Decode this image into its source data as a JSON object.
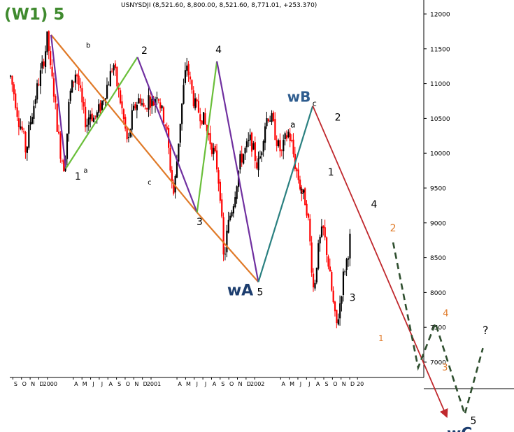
{
  "header": {
    "wave_title": "(W1) 5",
    "quote": "USNYSDJI (8,521.60, 8,800.00, 8,521.60, 8,771.01, +253.370)"
  },
  "chart_data": {
    "type": "candlestick",
    "symbol": "USNYSDJI",
    "title": "USNYSDJI (8,521.60, 8,800.00, 8,521.60, 8,771.01, +253.370)",
    "last_bar": {
      "open": 8521.6,
      "high": 8800.0,
      "low": 8521.6,
      "close": 8771.01,
      "change": "+253.370"
    },
    "x_range": [
      "1999-09",
      "2003-01"
    ],
    "ylim": [
      6500,
      12300
    ],
    "grid": false,
    "y_ticks": [
      7000,
      7500,
      8000,
      8500,
      9000,
      9500,
      10000,
      10500,
      11000,
      11500,
      12000
    ],
    "y_tick_labels": [
      "7000",
      "7500",
      "8000",
      "8500",
      "9000",
      "9500",
      "10000",
      "10500",
      "11000",
      "11500",
      "12000"
    ],
    "x_tick_labels": [
      {
        "label": "S",
        "t": 0.6
      },
      {
        "label": "O",
        "t": 1.6
      },
      {
        "label": "N",
        "t": 2.6
      },
      {
        "label": "D",
        "t": 3.6
      },
      {
        "label": "2000",
        "t": 4.6
      },
      {
        "label": "A",
        "t": 7.6
      },
      {
        "label": "M",
        "t": 8.6
      },
      {
        "label": "J",
        "t": 9.6
      },
      {
        "label": "J",
        "t": 10.6
      },
      {
        "label": "A",
        "t": 11.6
      },
      {
        "label": "S",
        "t": 12.6
      },
      {
        "label": "O",
        "t": 13.6
      },
      {
        "label": "N",
        "t": 14.6
      },
      {
        "label": "D",
        "t": 15.6
      },
      {
        "label": "2001",
        "t": 16.6
      },
      {
        "label": "A",
        "t": 19.6
      },
      {
        "label": "M",
        "t": 20.6
      },
      {
        "label": "J",
        "t": 21.6
      },
      {
        "label": "J",
        "t": 22.6
      },
      {
        "label": "A",
        "t": 23.6
      },
      {
        "label": "S",
        "t": 24.6
      },
      {
        "label": "O",
        "t": 25.6
      },
      {
        "label": "N",
        "t": 26.6
      },
      {
        "label": "D",
        "t": 27.6
      },
      {
        "label": "2002",
        "t": 28.6
      },
      {
        "label": "A",
        "t": 31.6
      },
      {
        "label": "M",
        "t": 32.6
      },
      {
        "label": "J",
        "t": 33.6
      },
      {
        "label": "J",
        "t": 34.6
      },
      {
        "label": "A",
        "t": 35.6
      },
      {
        "label": "S",
        "t": 36.6
      },
      {
        "label": "O",
        "t": 37.6
      },
      {
        "label": "N",
        "t": 38.6
      },
      {
        "label": "D",
        "t": 39.6
      },
      {
        "label": "20",
        "t": 40.5
      }
    ],
    "price_path": [
      {
        "t": 0.0,
        "v": 11100
      },
      {
        "t": 0.5,
        "v": 10800
      },
      {
        "t": 0.9,
        "v": 10500
      },
      {
        "t": 1.4,
        "v": 10300
      },
      {
        "t": 1.8,
        "v": 10000
      },
      {
        "t": 2.2,
        "v": 10400
      },
      {
        "t": 2.7,
        "v": 10700
      },
      {
        "t": 3.2,
        "v": 11000
      },
      {
        "t": 3.6,
        "v": 11200
      },
      {
        "t": 4.0,
        "v": 11450
      },
      {
        "t": 4.3,
        "v": 11700
      },
      {
        "t": 4.6,
        "v": 11200
      },
      {
        "t": 5.0,
        "v": 10900
      },
      {
        "t": 5.4,
        "v": 10400
      },
      {
        "t": 5.8,
        "v": 10000
      },
      {
        "t": 6.2,
        "v": 9800
      },
      {
        "t": 6.5,
        "v": 10200
      },
      {
        "t": 6.8,
        "v": 10800
      },
      {
        "t": 7.2,
        "v": 11000
      },
      {
        "t": 7.6,
        "v": 11200
      },
      {
        "t": 8.0,
        "v": 10900
      },
      {
        "t": 8.4,
        "v": 10600
      },
      {
        "t": 8.8,
        "v": 10400
      },
      {
        "t": 9.2,
        "v": 10600
      },
      {
        "t": 9.6,
        "v": 10500
      },
      {
        "t": 10.0,
        "v": 10550
      },
      {
        "t": 10.5,
        "v": 10700
      },
      {
        "t": 11.0,
        "v": 10900
      },
      {
        "t": 11.5,
        "v": 11100
      },
      {
        "t": 11.9,
        "v": 11300
      },
      {
        "t": 12.3,
        "v": 11000
      },
      {
        "t": 12.8,
        "v": 10700
      },
      {
        "t": 13.2,
        "v": 10400
      },
      {
        "t": 13.6,
        "v": 10100
      },
      {
        "t": 14.0,
        "v": 10500
      },
      {
        "t": 14.5,
        "v": 10700
      },
      {
        "t": 15.0,
        "v": 10800
      },
      {
        "t": 15.5,
        "v": 10600
      },
      {
        "t": 16.0,
        "v": 10800
      },
      {
        "t": 16.5,
        "v": 10700
      },
      {
        "t": 17.0,
        "v": 10900
      },
      {
        "t": 17.5,
        "v": 10600
      },
      {
        "t": 18.0,
        "v": 10400
      },
      {
        "t": 18.5,
        "v": 9800
      },
      {
        "t": 18.9,
        "v": 9400
      },
      {
        "t": 19.2,
        "v": 9800
      },
      {
        "t": 19.6,
        "v": 10400
      },
      {
        "t": 20.0,
        "v": 10900
      },
      {
        "t": 20.4,
        "v": 11300
      },
      {
        "t": 20.8,
        "v": 11000
      },
      {
        "t": 21.3,
        "v": 10700
      },
      {
        "t": 21.8,
        "v": 10600
      },
      {
        "t": 22.3,
        "v": 10500
      },
      {
        "t": 22.8,
        "v": 10300
      },
      {
        "t": 23.3,
        "v": 10100
      },
      {
        "t": 23.8,
        "v": 9900
      },
      {
        "t": 24.3,
        "v": 9400
      },
      {
        "t": 24.7,
        "v": 8400
      },
      {
        "t": 25.0,
        "v": 8800
      },
      {
        "t": 25.4,
        "v": 9100
      },
      {
        "t": 25.8,
        "v": 9300
      },
      {
        "t": 26.2,
        "v": 9600
      },
      {
        "t": 26.6,
        "v": 9900
      },
      {
        "t": 27.0,
        "v": 10000
      },
      {
        "t": 27.4,
        "v": 10100
      },
      {
        "t": 27.8,
        "v": 10200
      },
      {
        "t": 28.2,
        "v": 10000
      },
      {
        "t": 28.6,
        "v": 9800
      },
      {
        "t": 29.0,
        "v": 10000
      },
      {
        "t": 29.4,
        "v": 10400
      },
      {
        "t": 29.8,
        "v": 10550
      },
      {
        "t": 30.2,
        "v": 10500
      },
      {
        "t": 30.6,
        "v": 10300
      },
      {
        "t": 31.0,
        "v": 10100
      },
      {
        "t": 31.4,
        "v": 10000
      },
      {
        "t": 31.8,
        "v": 10200
      },
      {
        "t": 32.2,
        "v": 10300
      },
      {
        "t": 32.6,
        "v": 10100
      },
      {
        "t": 33.0,
        "v": 9800
      },
      {
        "t": 33.4,
        "v": 9600
      },
      {
        "t": 33.8,
        "v": 9400
      },
      {
        "t": 34.2,
        "v": 9300
      },
      {
        "t": 34.5,
        "v": 9000
      },
      {
        "t": 34.8,
        "v": 8500
      },
      {
        "t": 35.1,
        "v": 8000
      },
      {
        "t": 35.5,
        "v": 8500
      },
      {
        "t": 35.9,
        "v": 8800
      },
      {
        "t": 36.2,
        "v": 8900
      },
      {
        "t": 36.6,
        "v": 8600
      },
      {
        "t": 37.0,
        "v": 8200
      },
      {
        "t": 37.4,
        "v": 7800
      },
      {
        "t": 37.7,
        "v": 7500
      },
      {
        "t": 38.0,
        "v": 7700
      },
      {
        "t": 38.3,
        "v": 8000
      },
      {
        "t": 38.6,
        "v": 8300
      },
      {
        "t": 39.0,
        "v": 8500
      },
      {
        "t": 39.3,
        "v": 8771
      }
    ],
    "wave_lines": [
      {
        "from": {
          "t": 4.7,
          "v": 11700
        },
        "to": {
          "t": 21.6,
          "v": 9150
        },
        "color": "#e07a28"
      },
      {
        "from": {
          "t": 21.6,
          "v": 9150
        },
        "to": {
          "t": 28.7,
          "v": 8150
        },
        "color": "#e07a28"
      },
      {
        "from": {
          "t": 4.7,
          "v": 11700
        },
        "to": {
          "t": 6.4,
          "v": 9780
        },
        "color": "#7030a0"
      },
      {
        "from": {
          "t": 6.4,
          "v": 9780
        },
        "to": {
          "t": 14.7,
          "v": 11380
        },
        "color": "#6abf3a"
      },
      {
        "from": {
          "t": 14.7,
          "v": 11380
        },
        "to": {
          "t": 21.6,
          "v": 9150
        },
        "color": "#7030a0"
      },
      {
        "from": {
          "t": 21.6,
          "v": 9150
        },
        "to": {
          "t": 23.9,
          "v": 11320
        },
        "color": "#6abf3a"
      },
      {
        "from": {
          "t": 23.9,
          "v": 11320
        },
        "to": {
          "t": 28.7,
          "v": 8150
        },
        "color": "#7030a0"
      },
      {
        "from": {
          "t": 28.7,
          "v": 8150
        },
        "to": {
          "t": 35.0,
          "v": 10680
        },
        "color": "#2a8080"
      },
      {
        "from": {
          "t": 35.0,
          "v": 10680
        },
        "to": {
          "t": 50.5,
          "v": 6220
        },
        "color": "#c0282d",
        "arrow": true
      }
    ],
    "projection_path": [
      {
        "t": 44.3,
        "v": 8720
      },
      {
        "t": 47.2,
        "v": 6920
      },
      {
        "t": 49.2,
        "v": 7560
      },
      {
        "t": 52.6,
        "v": 6250
      },
      {
        "t": 54.7,
        "v": 7200
      }
    ],
    "annotations": [
      {
        "text": "b",
        "t": 9.0,
        "v": 11520,
        "color": "#000000",
        "size": 10
      },
      {
        "text": "2",
        "t": 15.5,
        "v": 11430,
        "color": "#000000",
        "size": 14
      },
      {
        "text": "4",
        "t": 24.1,
        "v": 11440,
        "color": "#000000",
        "size": 14
      },
      {
        "text": "1",
        "t": 7.8,
        "v": 9620,
        "color": "#000000",
        "size": 14
      },
      {
        "text": "a",
        "t": 8.7,
        "v": 9720,
        "color": "#000000",
        "size": 10
      },
      {
        "text": "c",
        "t": 16.1,
        "v": 9550,
        "color": "#000000",
        "size": 10
      },
      {
        "text": "3",
        "t": 21.9,
        "v": 8970,
        "color": "#000000",
        "size": 14
      },
      {
        "text": "wA",
        "t": 26.6,
        "v": 7960,
        "color": "#1c3d6e",
        "size": 22
      },
      {
        "text": "5",
        "t": 28.9,
        "v": 7960,
        "color": "#000000",
        "size": 14
      },
      {
        "text": "wB",
        "t": 33.4,
        "v": 10740,
        "color": "#2f5d8f",
        "size": 20
      },
      {
        "text": "c",
        "t": 35.2,
        "v": 10680,
        "color": "#000000",
        "size": 11
      },
      {
        "text": "a",
        "t": 32.7,
        "v": 10370,
        "color": "#000000",
        "size": 12
      },
      {
        "text": "b",
        "t": 33.8,
        "v": 9420,
        "color": "#000000",
        "size": 12
      },
      {
        "text": "2",
        "t": 37.9,
        "v": 10470,
        "color": "#000000",
        "size": 14
      },
      {
        "text": "1",
        "t": 37.1,
        "v": 9680,
        "color": "#000000",
        "size": 14
      },
      {
        "text": "4",
        "t": 42.1,
        "v": 9220,
        "color": "#000000",
        "size": 14
      },
      {
        "text": "2",
        "t": 44.3,
        "v": 8880,
        "color": "#e07a28",
        "size": 14
      },
      {
        "text": "3",
        "t": 39.6,
        "v": 7880,
        "color": "#000000",
        "size": 14
      },
      {
        "text": "1",
        "t": 42.9,
        "v": 7300,
        "color": "#e07a28",
        "size": 12
      },
      {
        "text": "4",
        "t": 50.4,
        "v": 7660,
        "color": "#e07a28",
        "size": 13
      },
      {
        "text": "3",
        "t": 50.3,
        "v": 6880,
        "color": "#e07a28",
        "size": 13
      },
      {
        "text": "?",
        "t": 55.0,
        "v": 7400,
        "color": "#000000",
        "size": 16
      },
      {
        "text": "5",
        "t": 53.6,
        "v": 6110,
        "color": "#000000",
        "size": 14
      },
      {
        "text": "wC",
        "t": 52.0,
        "v": 5900,
        "color": "#1c3d6e",
        "size": 22
      }
    ]
  },
  "colors": {
    "bull_candle": "#000000",
    "bear_candle": "#ff0000",
    "title_green": "#3f8a2e",
    "axis": "#000000",
    "projection": "#2f4f2f"
  }
}
